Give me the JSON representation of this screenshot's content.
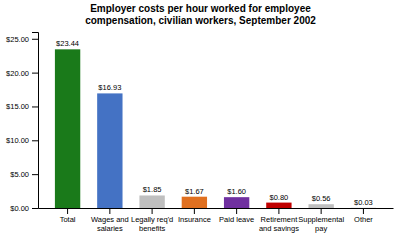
{
  "chart_data": {
    "type": "bar",
    "title": "Employer costs per hour worked for employee\ncompensation, civilian workers, September 2002",
    "categories": [
      "Total",
      "Wages and\nsalaries",
      "Legally req'd\nbenefits",
      "Insurance",
      "Paid leave",
      "Retirement\nand savings",
      "Supplemental\npay",
      "Other"
    ],
    "values": [
      23.44,
      16.93,
      1.85,
      1.67,
      1.6,
      0.8,
      0.56,
      0.03
    ],
    "value_labels": [
      "$23.44",
      "$16.93",
      "$1.85",
      "$1.67",
      "$1.60",
      "$0.80",
      "$0.56",
      "$0.03"
    ],
    "data_labels": true,
    "colors": [
      "#1a7a1a",
      "#4472c4",
      "#bfbfbf",
      "#e07020",
      "#7030a0",
      "#c00000",
      "#bfbfbf",
      "#bfbfbf"
    ],
    "ylim": [
      0,
      26
    ],
    "yticks": [
      {
        "value": 0,
        "label": "$0.00"
      },
      {
        "value": 5,
        "label": "$5.00"
      },
      {
        "value": 10,
        "label": "$10.00"
      },
      {
        "value": 15,
        "label": "$15.00"
      },
      {
        "value": 20,
        "label": "$20.00"
      },
      {
        "value": 25,
        "label": "$25.00"
      }
    ],
    "grid": false
  }
}
